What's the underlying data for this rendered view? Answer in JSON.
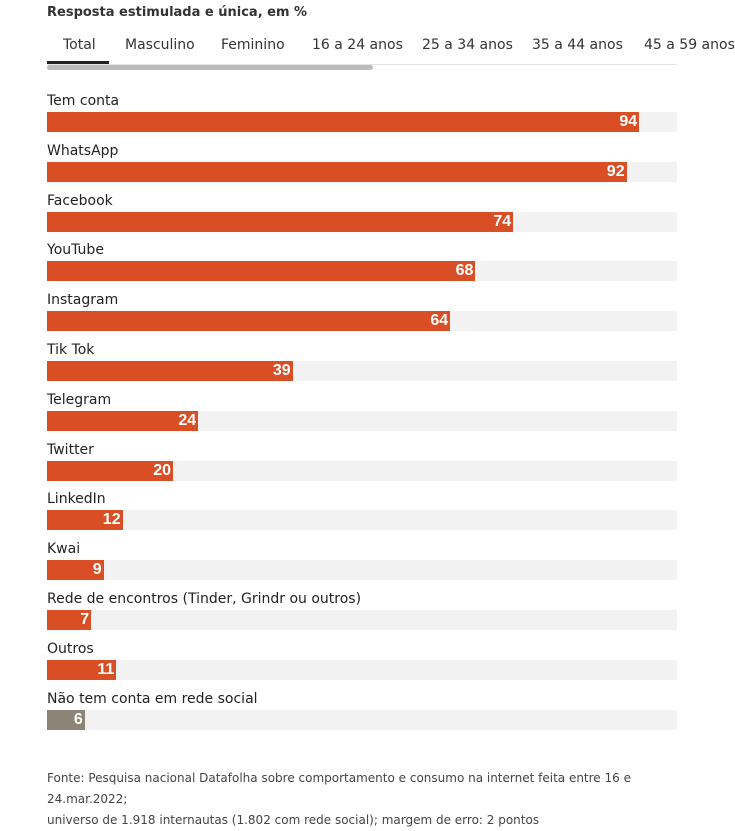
{
  "subtitle": "Resposta estimulada e única, em %",
  "tabs": [
    {
      "label": "Total",
      "active": true
    },
    {
      "label": "Masculino"
    },
    {
      "label": "Feminino"
    },
    {
      "label": "16 a 24 anos"
    },
    {
      "label": "25 a 34 anos"
    },
    {
      "label": "35 a 44 anos"
    },
    {
      "label": "45 a 59 anos"
    }
  ],
  "colors": {
    "bar": "#d94e24",
    "bar_none": "#8c8476",
    "track": "#f2f2f2"
  },
  "chart_data": {
    "type": "bar",
    "orientation": "horizontal",
    "categories": [
      "Tem conta",
      "WhatsApp",
      "Facebook",
      "YouTube",
      "Instagram",
      "Tik Tok",
      "Telegram",
      "Twitter",
      "LinkedIn",
      "Kwai",
      "Rede de encontros (Tinder, Grindr ou outros)",
      "Outros",
      "Não tem conta em rede social"
    ],
    "values": [
      94,
      92,
      74,
      68,
      64,
      39,
      24,
      20,
      12,
      9,
      7,
      11,
      6
    ],
    "xlim": [
      0,
      100
    ],
    "grid": false
  },
  "footer": {
    "line1": "Fonte: Pesquisa nacional Datafolha sobre comportamento e consumo na internet feita entre 16 e 24.mar.2022;",
    "line2": "universo de 1.918 internautas (1.802 com rede social); margem de erro: 2 pontos"
  }
}
